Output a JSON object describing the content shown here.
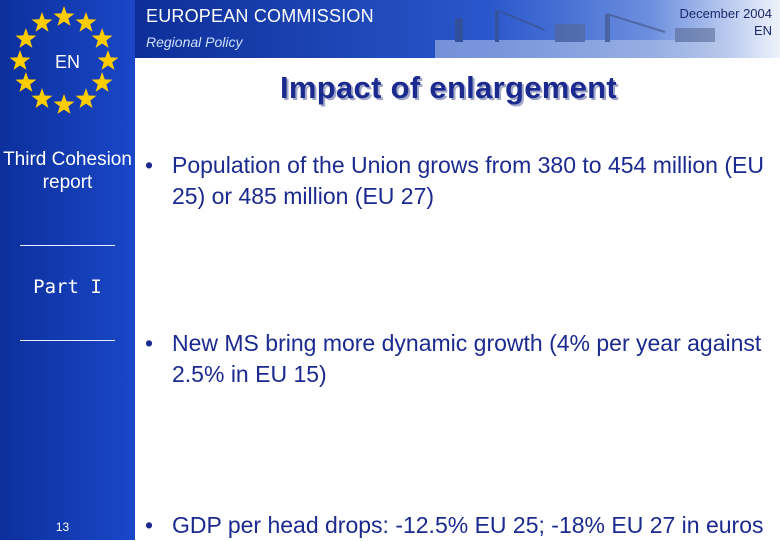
{
  "header": {
    "organisation": "EUROPEAN COMMISSION",
    "department": "Regional Policy",
    "date": "December 2004",
    "language": "EN"
  },
  "emblem": {
    "label": "EN",
    "star_color": "#ffcc00",
    "star_count": 12
  },
  "sidebar": {
    "report": "Third Cohesion report",
    "part": "Part I",
    "page_number": "13"
  },
  "slide": {
    "title": "Impact of enlargement",
    "bullets": [
      "Population of the Union grows from 380 to 454 million (EU 25) or 485 million (EU 27)",
      "New MS bring more dynamic growth (4% per year against 2.5% in EU 15)",
      "GDP per head drops: -12.5% EU 25; -18% EU 27 in euros"
    ]
  },
  "colors": {
    "sidebar_blue": "#1a47c8",
    "title_blue": "#1b2a8f"
  }
}
